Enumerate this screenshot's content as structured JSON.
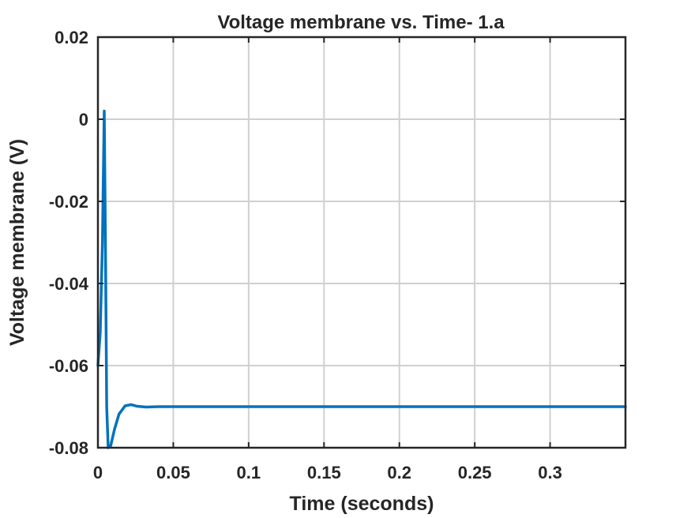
{
  "chart_data": {
    "type": "line",
    "title": "Voltage membrane vs. Time- 1.a",
    "xlabel": "Time (seconds)",
    "ylabel": "Voltage membrane (V)",
    "xlim": [
      0,
      0.35
    ],
    "ylim": [
      -0.08,
      0.02
    ],
    "x_ticks": [
      0,
      0.05,
      0.1,
      0.15,
      0.2,
      0.25,
      0.3
    ],
    "x_tick_labels": [
      "0",
      "0.05",
      "0.1",
      "0.15",
      "0.2",
      "0.25",
      "0.3"
    ],
    "y_ticks": [
      -0.08,
      -0.06,
      -0.04,
      -0.02,
      0,
      0.02
    ],
    "y_tick_labels": [
      "-0.08",
      "-0.06",
      "-0.04",
      "-0.02",
      "0",
      "0.02"
    ],
    "grid": true,
    "line_color": "#0072BD",
    "series": [
      {
        "x": [
          0,
          0.0015,
          0.003,
          0.0042,
          0.005,
          0.0058,
          0.0068,
          0.0085,
          0.011,
          0.014,
          0.018,
          0.022,
          0.026,
          0.032,
          0.04,
          0.06,
          0.1,
          0.15,
          0.2,
          0.25,
          0.3,
          0.35
        ],
        "y": [
          -0.06,
          -0.052,
          -0.03,
          0.002,
          -0.03,
          -0.07,
          -0.08,
          -0.0795,
          -0.0755,
          -0.0718,
          -0.0698,
          -0.0695,
          -0.0699,
          -0.0701,
          -0.07,
          -0.07,
          -0.07,
          -0.07,
          -0.07,
          -0.07,
          -0.07,
          -0.07
        ]
      }
    ]
  }
}
